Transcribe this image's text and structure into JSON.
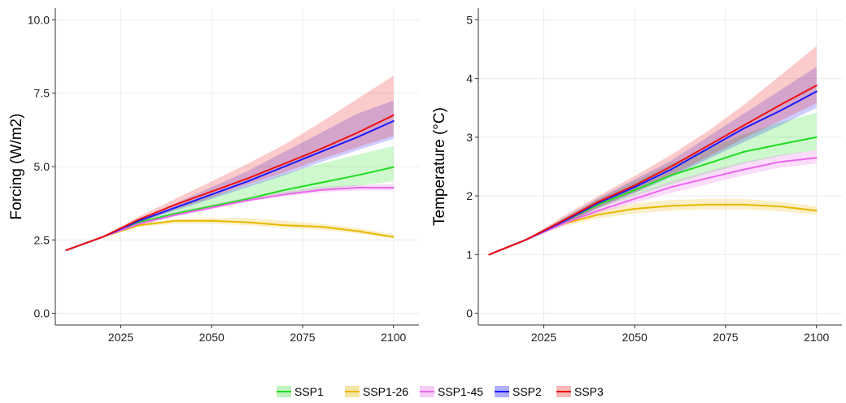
{
  "chart_data": [
    {
      "type": "line",
      "ylabel": "Forcing (W/m2)",
      "xlim": [
        2007,
        2107
      ],
      "ylim": [
        -0.4,
        10.4
      ],
      "xticks": [
        2025,
        2050,
        2075,
        2100
      ],
      "yticks": [
        0.0,
        2.5,
        5.0,
        7.5,
        10.0
      ],
      "ytick_labels": [
        "0.0",
        "2.5",
        "5.0",
        "7.5",
        "10.0"
      ],
      "grid": true,
      "x": [
        2010,
        2020,
        2030,
        2040,
        2050,
        2060,
        2070,
        2080,
        2090,
        2100
      ],
      "series": [
        {
          "name": "SSP1",
          "values": [
            2.15,
            2.6,
            3.1,
            3.4,
            3.65,
            3.9,
            4.2,
            4.45,
            4.7,
            4.98
          ],
          "lower": [
            2.15,
            2.6,
            3.05,
            3.35,
            3.6,
            3.82,
            4.05,
            4.2,
            4.35,
            4.5
          ],
          "upper": [
            2.15,
            2.6,
            3.15,
            3.6,
            4.0,
            4.35,
            4.75,
            5.1,
            5.4,
            5.7
          ]
        },
        {
          "name": "SSP1-26",
          "values": [
            2.15,
            2.6,
            3.0,
            3.15,
            3.15,
            3.1,
            3.0,
            2.95,
            2.8,
            2.6
          ],
          "lower": [
            2.15,
            2.6,
            2.95,
            3.05,
            3.05,
            3.0,
            2.9,
            2.85,
            2.72,
            2.55
          ],
          "upper": [
            2.15,
            2.6,
            3.05,
            3.2,
            3.25,
            3.25,
            3.15,
            3.05,
            2.9,
            2.7
          ]
        },
        {
          "name": "SSP1-45",
          "values": [
            2.15,
            2.6,
            3.05,
            3.35,
            3.6,
            3.85,
            4.05,
            4.2,
            4.28,
            4.28
          ],
          "lower": [
            2.15,
            2.6,
            3.0,
            3.3,
            3.55,
            3.8,
            3.98,
            4.12,
            4.18,
            4.18
          ],
          "upper": [
            2.15,
            2.6,
            3.1,
            3.45,
            3.7,
            3.95,
            4.15,
            4.3,
            4.38,
            4.4
          ]
        },
        {
          "name": "SSP2",
          "values": [
            2.15,
            2.6,
            3.15,
            3.6,
            4.05,
            4.5,
            5.0,
            5.5,
            6.0,
            6.55
          ],
          "lower": [
            2.15,
            2.6,
            3.1,
            3.5,
            3.9,
            4.3,
            4.7,
            5.15,
            5.55,
            5.95
          ],
          "upper": [
            2.15,
            2.6,
            3.2,
            3.75,
            4.3,
            4.85,
            5.5,
            6.15,
            6.8,
            7.25
          ]
        },
        {
          "name": "SSP3",
          "values": [
            2.15,
            2.6,
            3.2,
            3.7,
            4.15,
            4.6,
            5.1,
            5.6,
            6.15,
            6.75
          ],
          "lower": [
            2.15,
            2.6,
            3.1,
            3.55,
            3.95,
            4.4,
            4.8,
            5.25,
            5.65,
            6.05
          ],
          "upper": [
            2.15,
            2.6,
            3.3,
            3.9,
            4.5,
            5.1,
            5.75,
            6.5,
            7.3,
            8.1
          ]
        }
      ]
    },
    {
      "type": "line",
      "ylabel": "Temperature (°C)",
      "xlim": [
        2007,
        2107
      ],
      "ylim": [
        -0.2,
        5.2
      ],
      "xticks": [
        2025,
        2050,
        2075,
        2100
      ],
      "yticks": [
        0,
        1,
        2,
        3,
        4,
        5
      ],
      "ytick_labels": [
        "0",
        "1",
        "2",
        "3",
        "4",
        "5"
      ],
      "grid": true,
      "x": [
        2010,
        2020,
        2030,
        2040,
        2050,
        2060,
        2070,
        2080,
        2090,
        2100
      ],
      "series": [
        {
          "name": "SSP1",
          "values": [
            1.0,
            1.25,
            1.55,
            1.85,
            2.1,
            2.35,
            2.55,
            2.75,
            2.88,
            3.0
          ],
          "lower": [
            1.0,
            1.25,
            1.5,
            1.78,
            2.0,
            2.2,
            2.38,
            2.55,
            2.68,
            2.78
          ],
          "upper": [
            1.0,
            1.25,
            1.6,
            1.95,
            2.25,
            2.55,
            2.8,
            3.05,
            3.25,
            3.42
          ]
        },
        {
          "name": "SSP1-26",
          "values": [
            1.0,
            1.25,
            1.52,
            1.68,
            1.78,
            1.83,
            1.85,
            1.85,
            1.82,
            1.75
          ],
          "lower": [
            1.0,
            1.25,
            1.48,
            1.62,
            1.7,
            1.75,
            1.77,
            1.77,
            1.74,
            1.68
          ],
          "upper": [
            1.0,
            1.25,
            1.56,
            1.75,
            1.87,
            1.93,
            1.95,
            1.95,
            1.9,
            1.82
          ]
        },
        {
          "name": "SSP1-45",
          "values": [
            1.0,
            1.25,
            1.52,
            1.75,
            1.95,
            2.15,
            2.3,
            2.45,
            2.58,
            2.65
          ],
          "lower": [
            1.0,
            1.25,
            1.48,
            1.7,
            1.88,
            2.05,
            2.2,
            2.35,
            2.48,
            2.55
          ],
          "upper": [
            1.0,
            1.25,
            1.56,
            1.82,
            2.04,
            2.25,
            2.42,
            2.58,
            2.7,
            2.78
          ]
        },
        {
          "name": "SSP2",
          "values": [
            1.0,
            1.25,
            1.55,
            1.88,
            2.15,
            2.45,
            2.8,
            3.15,
            3.45,
            3.78
          ],
          "lower": [
            1.0,
            1.25,
            1.5,
            1.8,
            2.05,
            2.32,
            2.62,
            2.92,
            3.2,
            3.5
          ],
          "upper": [
            1.0,
            1.25,
            1.6,
            1.96,
            2.28,
            2.6,
            3.0,
            3.4,
            3.8,
            4.2
          ]
        },
        {
          "name": "SSP3",
          "values": [
            1.0,
            1.25,
            1.57,
            1.9,
            2.18,
            2.5,
            2.85,
            3.2,
            3.55,
            3.88
          ],
          "lower": [
            1.0,
            1.25,
            1.5,
            1.8,
            2.06,
            2.35,
            2.66,
            2.98,
            3.28,
            3.58
          ],
          "upper": [
            1.0,
            1.25,
            1.64,
            2.0,
            2.34,
            2.7,
            3.1,
            3.55,
            4.05,
            4.55
          ]
        }
      ]
    }
  ],
  "legend": {
    "placement": "bottom",
    "items": [
      {
        "name": "SSP1",
        "color": "#22dd22",
        "band": "#bff2bf"
      },
      {
        "name": "SSP1-26",
        "color": "#e8b800",
        "band": "#f5e6a8"
      },
      {
        "name": "SSP1-45",
        "color": "#ee66ee",
        "band": "#f7cdf7"
      },
      {
        "name": "SSP2",
        "color": "#1a1aff",
        "band": "#b0b0ff"
      },
      {
        "name": "SSP3",
        "color": "#ee1111",
        "band": "#f7b8b8"
      }
    ]
  }
}
